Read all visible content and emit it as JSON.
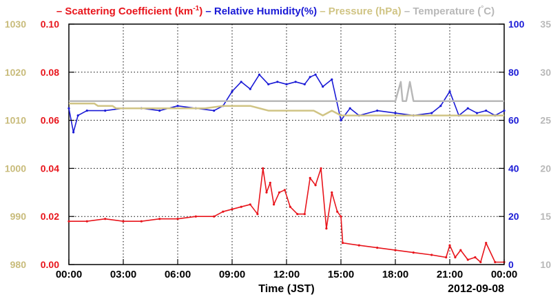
{
  "chart_data": {
    "type": "line",
    "xlabel": "Time (JST)",
    "date_label": "2012-09-08",
    "x_ticks": [
      "00:00",
      "03:00",
      "06:00",
      "09:00",
      "12:00",
      "15:00",
      "18:00",
      "21:00",
      "00:00"
    ],
    "x_range_hours": [
      0,
      24
    ],
    "legend": [
      {
        "name": "Scattering Coefficient (km",
        "sup": "-1",
        "close": ")",
        "color": "#e8141b"
      },
      {
        "name": "Relative Humidity(%)",
        "color": "#1a1ad6"
      },
      {
        "name": "Pressure (hPa)",
        "color": "#d0c484"
      },
      {
        "name": "Temperature (",
        "sup": "°",
        "close": "C)",
        "color": "#b8b8b8"
      }
    ],
    "axes": {
      "pressure": {
        "side": "left",
        "ylim": [
          980,
          1030
        ],
        "ticks": [
          "980",
          "990",
          "1000",
          "1010",
          "1020",
          "1030"
        ],
        "color": "#c8bb7a"
      },
      "scattering": {
        "side": "left",
        "ylim": [
          0,
          0.1
        ],
        "ticks": [
          "0.00",
          "0.02",
          "0.04",
          "0.06",
          "0.08",
          "0.10"
        ],
        "color": "#e8141b"
      },
      "humidity": {
        "side": "right",
        "ylim": [
          0,
          100
        ],
        "ticks": [
          "0",
          "20",
          "40",
          "60",
          "80",
          "100"
        ],
        "color": "#1a1ad6"
      },
      "temperature": {
        "side": "right",
        "ylim": [
          10,
          35
        ],
        "ticks": [
          "10",
          "15",
          "20",
          "25",
          "30",
          "35"
        ],
        "color": "#b8b8b8"
      }
    },
    "grid": true,
    "series": [
      {
        "name": "Scattering Coefficient",
        "axis": "scattering",
        "color": "#e8141b",
        "x": [
          0,
          1,
          2,
          3,
          4,
          5,
          6,
          7,
          8,
          8.5,
          9,
          9.5,
          10,
          10.4,
          10.7,
          10.9,
          11.1,
          11.3,
          11.6,
          11.9,
          12.2,
          12.6,
          13,
          13.3,
          13.6,
          13.9,
          14.2,
          14.5,
          14.8,
          15,
          15.1,
          16,
          17,
          18,
          19,
          20,
          20.8,
          21,
          21.3,
          21.6,
          22,
          22.4,
          22.7,
          23,
          23.5,
          24
        ],
        "y": [
          0.018,
          0.018,
          0.019,
          0.018,
          0.018,
          0.019,
          0.019,
          0.02,
          0.02,
          0.022,
          0.023,
          0.024,
          0.025,
          0.021,
          0.04,
          0.03,
          0.034,
          0.025,
          0.03,
          0.031,
          0.024,
          0.021,
          0.021,
          0.036,
          0.033,
          0.04,
          0.015,
          0.03,
          0.022,
          0.02,
          0.009,
          0.008,
          0.007,
          0.006,
          0.005,
          0.004,
          0.003,
          0.008,
          0.003,
          0.006,
          0.002,
          0.003,
          0.001,
          0.009,
          0.001,
          0.001
        ]
      },
      {
        "name": "Relative Humidity",
        "axis": "humidity",
        "color": "#1a1ad6",
        "x": [
          0,
          0.25,
          0.5,
          1,
          2,
          3,
          4,
          5,
          6,
          7,
          8,
          8.5,
          9,
          9.5,
          10,
          10.5,
          11,
          11.5,
          12,
          12.5,
          13,
          13.3,
          13.6,
          14,
          14.5,
          15,
          15.5,
          16,
          17,
          18,
          19,
          20,
          20.5,
          21,
          21.5,
          22,
          22.5,
          23,
          23.5,
          24
        ],
        "y": [
          65,
          55,
          62,
          64,
          64,
          65,
          65,
          64,
          66,
          65,
          64,
          66,
          72,
          76,
          73,
          79,
          75,
          76,
          75,
          76,
          75,
          78,
          79,
          74,
          77,
          60,
          65,
          62,
          64,
          63,
          62,
          63,
          66,
          72,
          62,
          65,
          63,
          64,
          62,
          64
        ]
      },
      {
        "name": "Pressure",
        "axis": "pressure",
        "color": "#d0c484",
        "x": [
          0,
          1.4,
          1.6,
          2.4,
          2.6,
          7.5,
          8.5,
          10,
          11,
          12,
          13.5,
          14,
          14.5,
          15,
          16,
          18,
          21,
          22,
          24
        ],
        "y": [
          1013.5,
          1013.5,
          1013,
          1013,
          1012.5,
          1012.5,
          1013,
          1013,
          1012,
          1012,
          1012,
          1011,
          1012,
          1011,
          1011,
          1011,
          1011,
          1011,
          1011
        ]
      },
      {
        "name": "Temperature",
        "axis": "temperature",
        "color": "#b8b8b8",
        "x": [
          0,
          9,
          10,
          17,
          18,
          18.3,
          18.4,
          18.6,
          18.8,
          19,
          19.2,
          19.5,
          24
        ],
        "y": [
          27,
          27,
          27,
          27,
          27,
          29,
          27,
          27,
          29,
          27,
          27,
          27,
          27
        ]
      }
    ]
  }
}
